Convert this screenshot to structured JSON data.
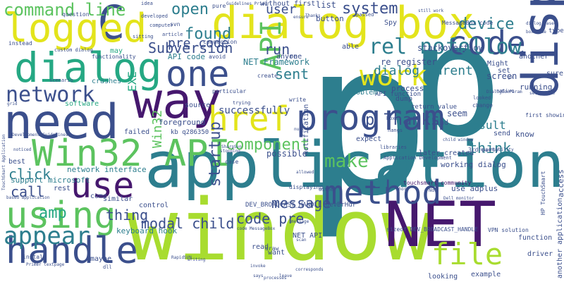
{
  "palette": {
    "lime": "#a8dc2f",
    "teal": "#2d7e8e",
    "green": "#25a883",
    "navy": "#3b4f8c",
    "purple": "#46186e",
    "yellow": "#e3e41c",
    "lightgreen": "#5cc35f",
    "blue": "#32638d"
  },
  "words": [
    {
      "text": "p"
    },
    {
      "text": "p"
    },
    {
      "text": "window"
    },
    {
      "text": "application"
    },
    {
      "text": "dialog box"
    },
    {
      "text": "display"
    },
    {
      "text": "NET"
    },
    {
      "text": "program"
    },
    {
      "text": "way"
    },
    {
      "text": "need"
    },
    {
      "text": "C"
    },
    {
      "text": "logged"
    },
    {
      "text": "dialog"
    },
    {
      "text": "one"
    },
    {
      "text": "href"
    },
    {
      "text": "Win32 API"
    },
    {
      "text": "using"
    },
    {
      "text": "handle"
    },
    {
      "text": "method"
    },
    {
      "text": "use"
    },
    {
      "text": "code"
    },
    {
      "text": "file"
    },
    {
      "text": "work"
    },
    {
      "text": "network"
    },
    {
      "text": "appear"
    },
    {
      "text": "rel nofollow"
    },
    {
      "text": "command line"
    },
    {
      "text": "API"
    },
    {
      "text": "message"
    },
    {
      "text": "component"
    },
    {
      "text": "p Thanks"
    },
    {
      "text": "make"
    },
    {
      "text": "open"
    },
    {
      "text": "pre code"
    },
    {
      "text": "found"
    },
    {
      "text": "Subversion"
    },
    {
      "text": "device"
    },
    {
      "text": "system"
    },
    {
      "text": "dialog parent"
    },
    {
      "text": "sent"
    },
    {
      "text": "user"
    },
    {
      "text": "modal child"
    },
    {
      "text": "code pre"
    },
    {
      "text": "startup"
    },
    {
      "text": "run"
    },
    {
      "text": "thing"
    },
    {
      "text": "amp"
    },
    {
      "text": "call"
    },
    {
      "text": "click"
    },
    {
      "text": "em"
    },
    {
      "text": "think"
    },
    {
      "text": "result"
    },
    {
      "text": "Win32"
    },
    {
      "text": "EXE"
    },
    {
      "text": "successfully"
    },
    {
      "text": "foreground"
    },
    {
      "text": "keyboard hook"
    },
    {
      "text": "network interface"
    },
    {
      "text": "working dialog"
    },
    {
      "text": "use adplus"
    },
    {
      "text": "stackoverflow"
    },
    {
      "text": "re register"
    },
    {
      "text": "NET Framework"
    },
    {
      "text": "API code"
    },
    {
      "text": "API function"
    },
    {
      "text": "possible"
    },
    {
      "text": "support microsoft"
    },
    {
      "text": "DEV_BROADCAST_HANDLE devBrHdr"
    },
    {
      "text": "sizeof DEV_BROADCAST_HANDLE"
    },
    {
      "text": "kb q286350"
    },
    {
      "text": "touchsmart community"
    },
    {
      "text": "HP TouchSmart"
    },
    {
      "text": "VPN solution"
    },
    {
      "text": "another application"
    },
    {
      "text": "access"
    },
    {
      "text": "first showing"
    },
    {
      "text": "custom dialog"
    },
    {
      "text": "Development Guidelines"
    },
    {
      "text": "TouchSmart Application"
    },
    {
      "text": "functionality"
    },
    {
      "text": "question"
    },
    {
      "text": "instead"
    },
    {
      "text": "sure"
    },
    {
      "text": "know"
    },
    {
      "text": "send"
    },
    {
      "text": "set"
    },
    {
      "text": "screen"
    },
    {
      "text": "running"
    },
    {
      "text": "process"
    },
    {
      "text": "seem"
    },
    {
      "text": "find"
    },
    {
      "text": "list"
    },
    {
      "text": "button"
    },
    {
      "text": "idea"
    },
    {
      "text": "without first"
    },
    {
      "text": "Spy"
    },
    {
      "text": "able"
    },
    {
      "text": "source"
    },
    {
      "text": "software"
    },
    {
      "text": "crashes"
    },
    {
      "text": "may"
    },
    {
      "text": "failed"
    },
    {
      "text": "best"
    },
    {
      "text": "rest"
    },
    {
      "text": "come"
    },
    {
      "text": "control"
    },
    {
      "text": "similar"
    },
    {
      "text": "read"
    },
    {
      "text": "want"
    },
    {
      "text": "NET API"
    },
    {
      "text": "looking"
    },
    {
      "text": "example"
    },
    {
      "text": "driver"
    },
    {
      "text": "function"
    },
    {
      "text": "maybe"
    },
    {
      "text": "grid"
    },
    {
      "text": "later created"
    },
    {
      "text": "problem"
    },
    {
      "text": "dump"
    },
    {
      "text": "notification"
    },
    {
      "text": "expect"
    },
    {
      "text": "return value"
    },
    {
      "text": "another"
    },
    {
      "text": "type"
    },
    {
      "text": "connection"
    },
    {
      "text": "avoid"
    },
    {
      "text": "trying"
    },
    {
      "text": "write"
    },
    {
      "text": "displaying"
    },
    {
      "text": "draw"
    },
    {
      "text": "sitting"
    },
    {
      "text": "article"
    },
    {
      "text": "computer"
    },
    {
      "text": "developed"
    },
    {
      "text": "passed"
    },
    {
      "text": "Guidelines Primer"
    },
    {
      "text": "pure"
    },
    {
      "text": "re"
    },
    {
      "text": "svn"
    },
    {
      "text": "scenario"
    },
    {
      "text": "particular"
    },
    {
      "text": "create"
    },
    {
      "text": "ensure"
    },
    {
      "text": "boxes"
    },
    {
      "text": "hangs"
    },
    {
      "text": "case"
    },
    {
      "text": "either"
    },
    {
      "text": "short"
    },
    {
      "text": "Now"
    },
    {
      "text": "dll"
    },
    {
      "text": "install"
    },
    {
      "text": "3rd party"
    },
    {
      "text": "native"
    },
    {
      "text": "looked"
    },
    {
      "text": "setup code"
    },
    {
      "text": "change"
    },
    {
      "text": "DialogBoxParam"
    },
    {
      "text": "responsibility"
    },
    {
      "text": "libraries"
    },
    {
      "text": "Application Development"
    },
    {
      "text": "corresponds"
    },
    {
      "text": "code MessageBox"
    },
    {
      "text": "says"
    },
    {
      "text": "Primer textpage"
    },
    {
      "text": "RapidSVN"
    },
    {
      "text": "writing"
    },
    {
      "text": "invoke"
    },
    {
      "text": "leave"
    },
    {
      "text": "processes"
    },
    {
      "text": "allowed"
    },
    {
      "text": "anyone"
    },
    {
      "text": "noticed"
    },
    {
      "text": "based application"
    },
    {
      "text": "Might"
    },
    {
      "text": "go"
    },
    {
      "text": "MessageBox code"
    },
    {
      "text": "dialog based"
    },
    {
      "text": "still work"
    },
    {
      "text": "box code"
    },
    {
      "text": "stopping"
    },
    {
      "text": "SharpSvn"
    },
    {
      "text": "null"
    },
    {
      "text": "scan"
    },
    {
      "text": "message"
    },
    {
      "text": "Dell monitor"
    },
    {
      "text": "child window"
    },
    {
      "text": "Thanks"
    }
  ]
}
